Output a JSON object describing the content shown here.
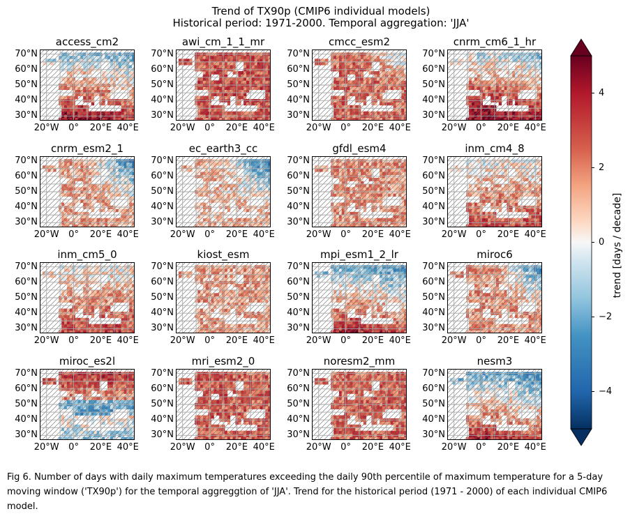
{
  "title_line1": "Trend of TX90p (CMIP6 individual models)",
  "title_line2": "Historical period: 1971-2000. Temporal aggregation: 'JJA'",
  "caption": "Fig 6. Number of days with daily maximum temperatures exceeding the daily 90th percentile of maximum temperature for a 5-day moving window ('TX90p') for the temporal aggreggtion of 'JJA'. Trend for the historical period (1971 - 2000) of each individual CMIP6 model.",
  "colorbar": {
    "label": "trend [days / decade]",
    "ticks": [
      "4",
      "2",
      "0",
      "−2",
      "−4"
    ],
    "range": [
      -5,
      5
    ],
    "colormap": "RdBu_r",
    "extend": "both"
  },
  "chart_data": {
    "type": "heatmap",
    "x_ticks": [
      "20°W",
      "0°",
      "20°E",
      "40°E"
    ],
    "y_ticks": [
      "70°N",
      "60°N",
      "50°N",
      "40°N",
      "30°N"
    ],
    "panels": [
      {
        "name": "access_cm2",
        "tendency": "warm south, cool Scandinavia",
        "bias": 1.5
      },
      {
        "name": "awi_cm_1_1_mr",
        "tendency": "strong warming central/east",
        "bias": 2.8
      },
      {
        "name": "cmcc_esm2",
        "tendency": "strong warming, cool northeast",
        "bias": 2.4
      },
      {
        "name": "cnrm_cm6_1_hr",
        "tendency": "warming, slight cooling north-east",
        "bias": 2.0
      },
      {
        "name": "cnrm_esm2_1",
        "tendency": "moderate warming, cooling east",
        "bias": 1.3
      },
      {
        "name": "ec_earth3_cc",
        "tendency": "warming south, cooling east",
        "bias": 1.0
      },
      {
        "name": "gfdl_esm4",
        "tendency": "moderate warming",
        "bias": 1.6
      },
      {
        "name": "inm_cm4_8",
        "tendency": "warming south, neutral north",
        "bias": 1.4
      },
      {
        "name": "inm_cm5_0",
        "tendency": "warming south",
        "bias": 1.5
      },
      {
        "name": "kiost_esm",
        "tendency": "moderate warming",
        "bias": 1.4
      },
      {
        "name": "mpi_esm1_2_lr",
        "tendency": "cooling north, warming south",
        "bias": 0.9
      },
      {
        "name": "miroc6",
        "tendency": "warming south, cooling northeast",
        "bias": 1.6
      },
      {
        "name": "miroc_es2l",
        "tendency": "strong warming north, cooling centre",
        "bias": 1.2
      },
      {
        "name": "mri_esm2_0",
        "tendency": "strong warming",
        "bias": 2.6
      },
      {
        "name": "noresm2_mm",
        "tendency": "strong warming",
        "bias": 2.5
      },
      {
        "name": "nesm3",
        "tendency": "cooling north, warming south",
        "bias": 0.8
      }
    ]
  }
}
